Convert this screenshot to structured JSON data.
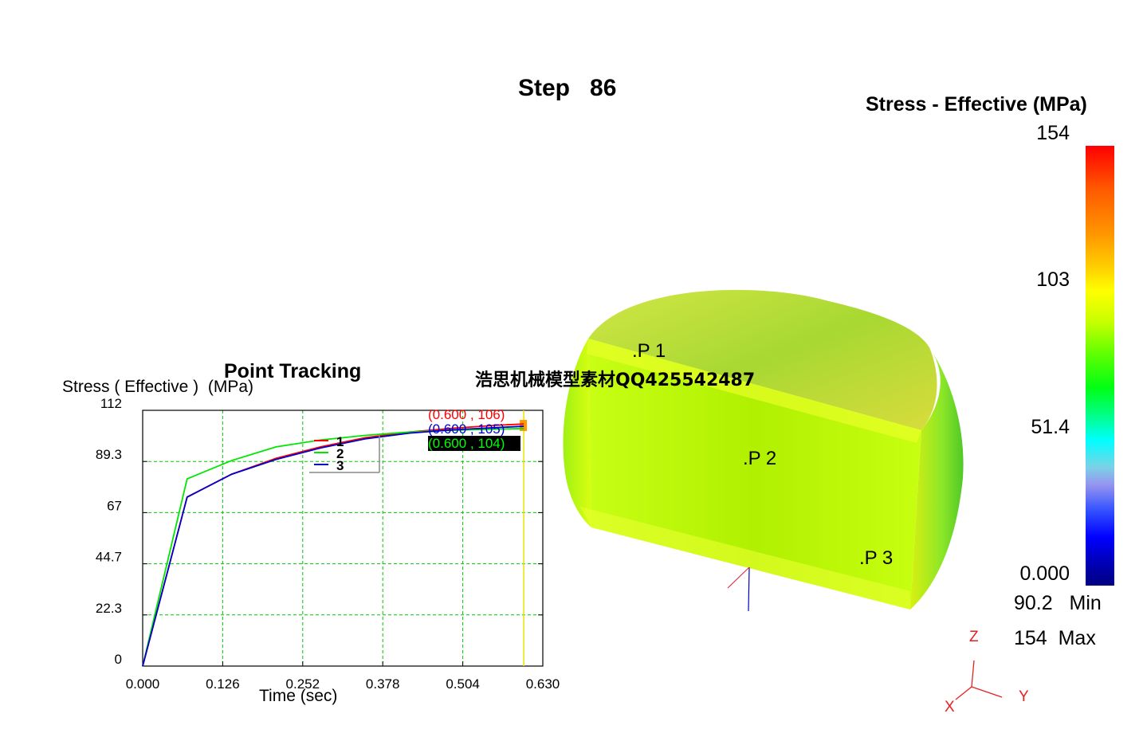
{
  "header": {
    "step_label": "Step   86"
  },
  "legend": {
    "title": "Stress - Effective (MPa)",
    "scale_labels": [
      "154",
      "103",
      "51.4",
      "0.000"
    ],
    "min_text": "90.2   Min",
    "max_text": "154  Max"
  },
  "model": {
    "probes": [
      ".P 1",
      ".P 2",
      ".P 3"
    ],
    "axes": {
      "x": "X",
      "y": "Y",
      "z": "Z"
    },
    "colors": {
      "surface_main": "#b4ff00",
      "surface_top": "#c8e03c",
      "edge_yellow": "#f0ff20",
      "side_green": "#64e628"
    }
  },
  "watermark": "浩思机械模型素材QQ425542487",
  "chart_data": {
    "type": "line",
    "title": "Point Tracking",
    "ylabel": "Stress ( Effective )  (MPa)",
    "xlabel": "Time (sec)",
    "x_ticks": [
      "0.000",
      "0.126",
      "0.252",
      "0.378",
      "0.504",
      "0.630"
    ],
    "y_ticks": [
      "0",
      "22.3",
      "44.7",
      "67",
      "89.3",
      "112"
    ],
    "xlim": [
      0,
      0.63
    ],
    "ylim": [
      0,
      112
    ],
    "grid": true,
    "legend_position": "top-center",
    "series": [
      {
        "name": "1",
        "color": "#ff0000",
        "x": [
          0.0,
          0.07,
          0.14,
          0.21,
          0.28,
          0.35,
          0.42,
          0.49,
          0.56,
          0.6
        ],
        "y": [
          0,
          74,
          84,
          91,
          96,
          100,
          102.5,
          104.2,
          105.5,
          106
        ]
      },
      {
        "name": "2",
        "color": "#00e600",
        "x": [
          0.0,
          0.07,
          0.14,
          0.21,
          0.28,
          0.35,
          0.42,
          0.49,
          0.56,
          0.6
        ],
        "y": [
          0,
          82,
          90,
          96,
          99,
          101,
          102.5,
          103.3,
          103.8,
          104
        ]
      },
      {
        "name": "3",
        "color": "#0000cc",
        "x": [
          0.0,
          0.07,
          0.14,
          0.21,
          0.28,
          0.35,
          0.42,
          0.49,
          0.56,
          0.6
        ],
        "y": [
          0,
          74,
          84,
          90.5,
          95.5,
          99.5,
          102,
          103.5,
          104.5,
          105
        ]
      }
    ],
    "annotations": [
      {
        "text": "(0.600 , 106)",
        "color": "#ff0000"
      },
      {
        "text": "(0.600 , 105)",
        "color": "#0000cc"
      },
      {
        "text": "(0.600 , 104)",
        "color": "#00ff00",
        "background": "#000000"
      }
    ],
    "cursor_time": 0.6
  }
}
